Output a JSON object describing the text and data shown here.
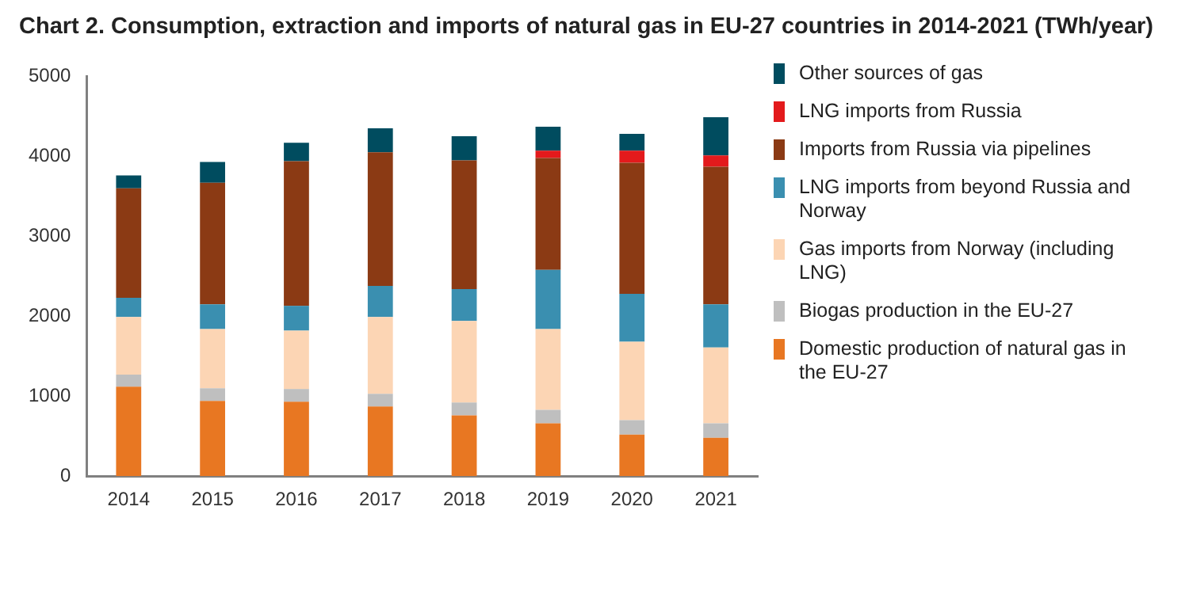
{
  "chart_data": {
    "type": "bar",
    "title": "Chart 2.  Consumption, extraction and imports of natural gas in EU-27 countries in 2014-2021 (TWh/year)",
    "categories": [
      "2014",
      "2015",
      "2016",
      "2017",
      "2018",
      "2019",
      "2020",
      "2021"
    ],
    "stacked": true,
    "ylim": [
      0,
      5000
    ],
    "yticks": [
      0,
      1000,
      2000,
      3000,
      4000,
      5000
    ],
    "grid": false,
    "legend": "right",
    "series": [
      {
        "name": "Domestic production of natural gas in the EU-27",
        "color": "#e87722",
        "values": [
          1120,
          940,
          930,
          870,
          760,
          660,
          520,
          480
        ]
      },
      {
        "name": "Biogas production in the EU-27",
        "color": "#bfbfbf",
        "values": [
          150,
          160,
          160,
          160,
          160,
          170,
          180,
          180
        ]
      },
      {
        "name": "Gas imports from Norway (including LNG)",
        "color": "#fcd5b4",
        "values": [
          720,
          740,
          730,
          960,
          1020,
          1010,
          980,
          950
        ]
      },
      {
        "name": "LNG imports from beyond Russia and Norway",
        "color": "#3a8fb0",
        "values": [
          240,
          310,
          310,
          390,
          400,
          740,
          600,
          540
        ]
      },
      {
        "name": "Imports from Russia via pipelines",
        "color": "#8b3a14",
        "values": [
          1370,
          1520,
          1810,
          1670,
          1610,
          1400,
          1640,
          1720
        ]
      },
      {
        "name": "LNG imports from Russia",
        "color": "#e31a1c",
        "values": [
          0,
          0,
          0,
          0,
          0,
          90,
          150,
          140
        ]
      },
      {
        "name": "Other sources of gas",
        "color": "#004c5f",
        "values": [
          160,
          260,
          230,
          300,
          300,
          300,
          210,
          480
        ]
      }
    ]
  }
}
